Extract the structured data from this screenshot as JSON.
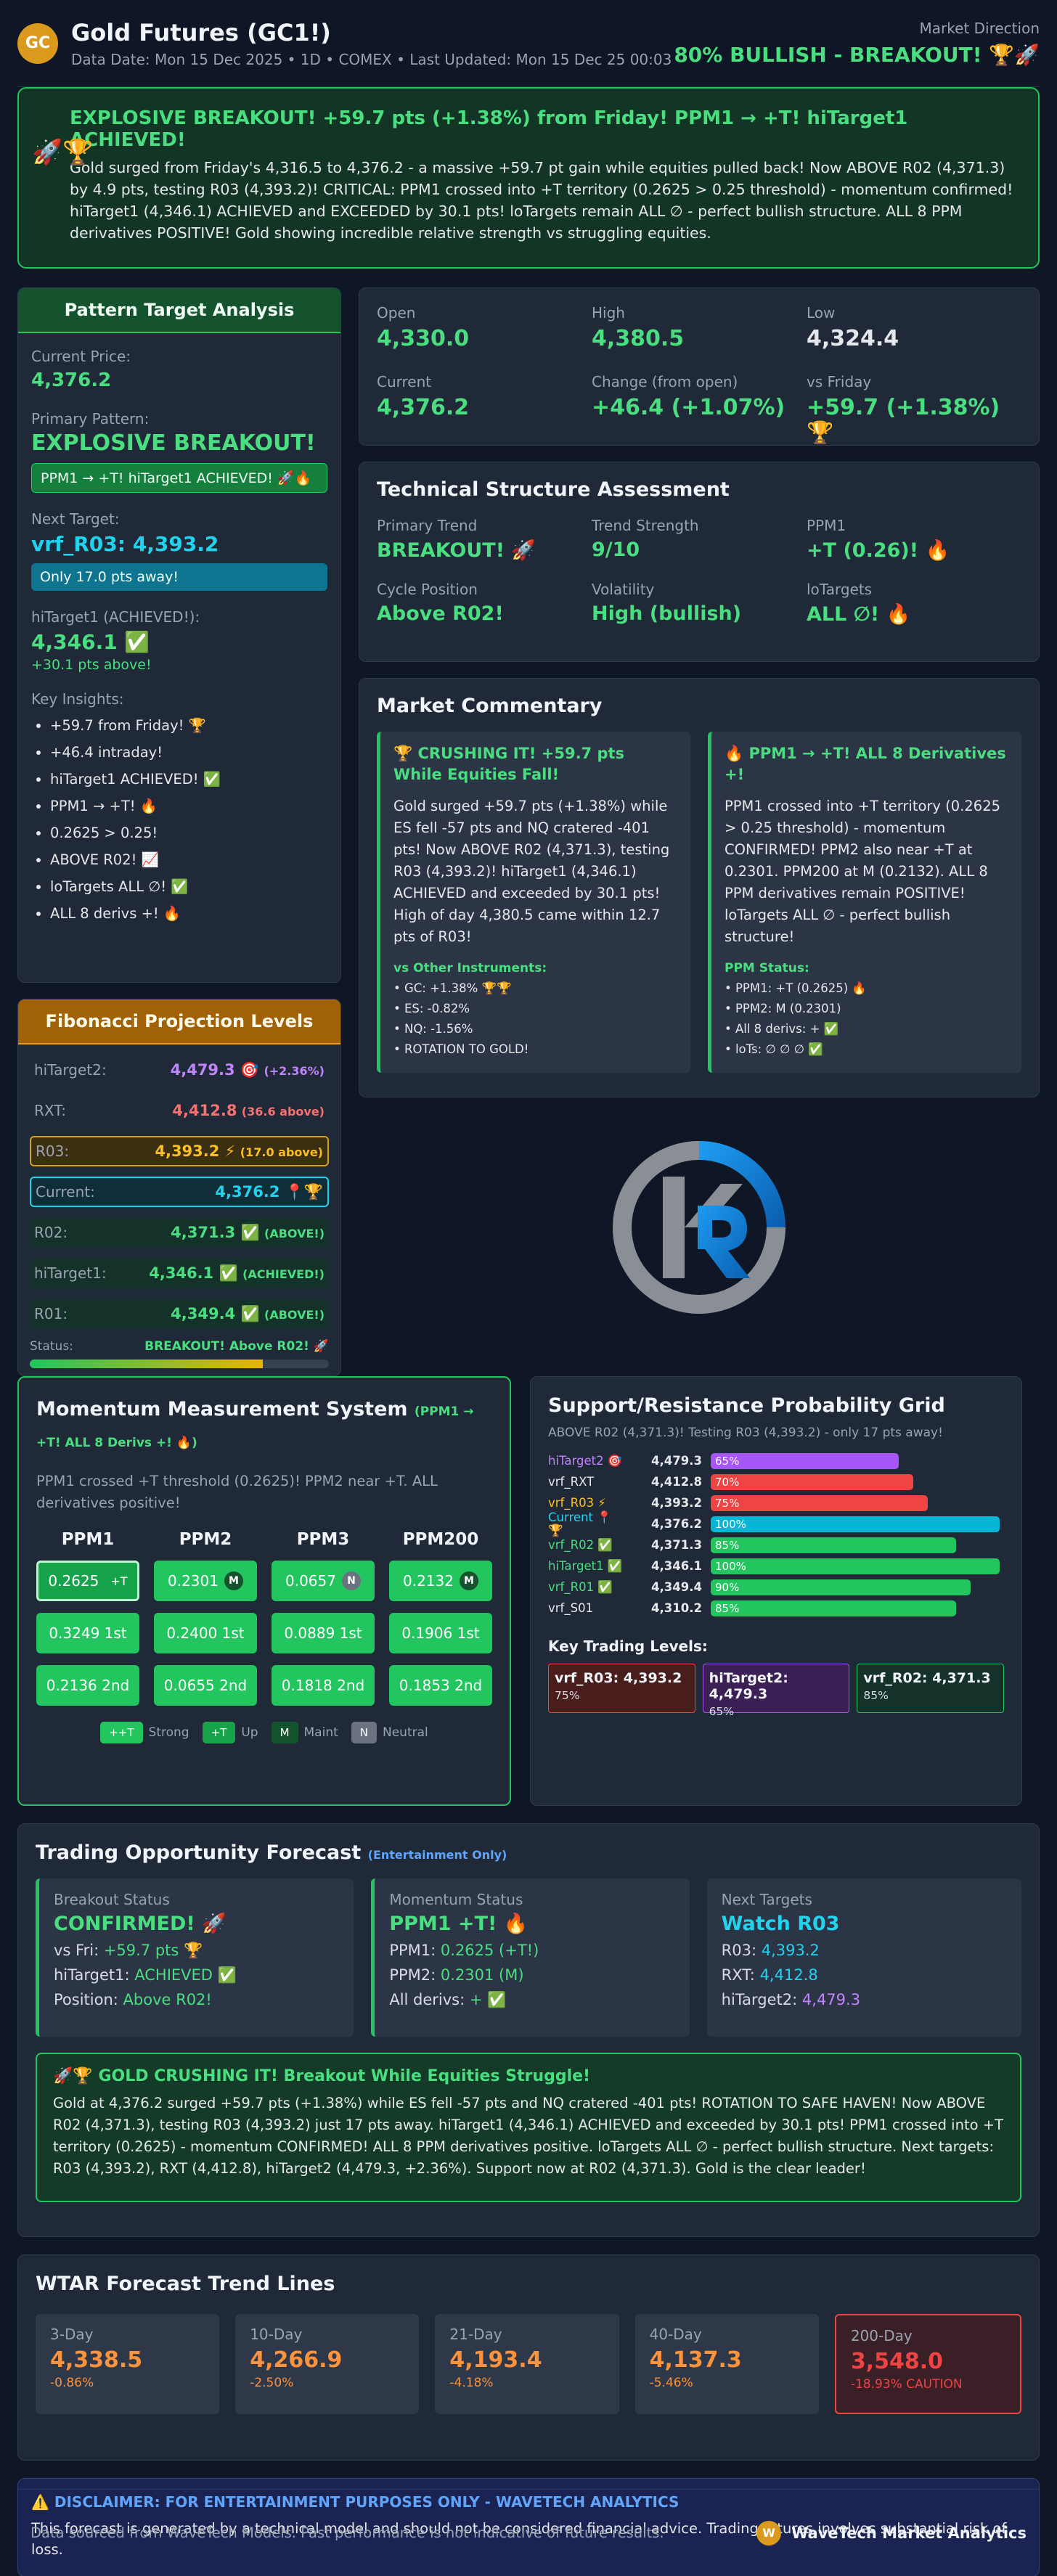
{
  "header": {
    "logo": "GC",
    "title": "Gold Futures (GC1!)",
    "subtitle": "Data Date: Mon 15 Dec 2025 • 1D • COMEX • Last Updated: Mon 15 Dec 25 00:03",
    "direction_label": "Market Direction",
    "direction_value": "80% BULLISH - BREAKOUT! 🏆🚀"
  },
  "alert": {
    "icons": "🚀🏆",
    "title": "EXPLOSIVE BREAKOUT! +59.7 pts (+1.38%) from Friday! PPM1 → +T! hiTarget1 ACHIEVED!",
    "body": "Gold surged from Friday's 4,316.5 to 4,376.2 - a massive +59.7 pt gain while equities pulled back! Now ABOVE R02 (4,371.3) by 4.9 pts, testing R03 (4,393.2)! CRITICAL: PPM1 crossed into +T territory (0.2625 > 0.25 threshold) - momentum confirmed! hiTarget1 (4,346.1) ACHIEVED and EXCEEDED by 30.1 pts! loTargets remain ALL ∅ - perfect bullish structure. ALL 8 PPM derivatives POSITIVE! Gold showing incredible relative strength vs struggling equities."
  },
  "pattern": {
    "heading": "Pattern Target Analysis",
    "current_price_label": "Current Price:",
    "current_price": "4,376.2",
    "primary_pattern_label": "Primary Pattern:",
    "primary_pattern": "EXPLOSIVE BREAKOUT!",
    "primary_pill": "PPM1 → +T! hiTarget1 ACHIEVED! 🚀🔥",
    "next_target_label": "Next Target:",
    "next_target": "vrf_R03: 4,393.2",
    "next_pill": "Only 17.0 pts away!",
    "hitarget_label": "hiTarget1 (ACHIEVED!):",
    "hitarget_value": "4,346.1 ✅",
    "hitarget_note": "+30.1 pts above!",
    "insights_label": "Key Insights:",
    "insights": [
      "+59.7 from Friday! 🏆",
      "+46.4 intraday!",
      "hiTarget1 ACHIEVED! ✅",
      "PPM1 → +T! 🔥",
      "0.2625 > 0.25!",
      "ABOVE R02! 📈",
      "loTargets ALL ∅! ✅",
      "ALL 8 derivs +! 🔥"
    ]
  },
  "fib": {
    "heading": "Fibonacci Projection Levels",
    "rows": [
      {
        "label": "hiTarget2:",
        "value": "4,479.3 🎯",
        "note": "(+2.36%)"
      },
      {
        "label": "RXT:",
        "value": "4,412.8",
        "note": "(36.6 above)"
      },
      {
        "label": "R03:",
        "value": "4,393.2 ⚡",
        "note": "(17.0 above)"
      },
      {
        "label": "Current:",
        "value": "4,376.2 📍🏆",
        "note": ""
      },
      {
        "label": "R02:",
        "value": "4,371.3 ✅",
        "note": "(ABOVE!)"
      },
      {
        "label": "hiTarget1:",
        "value": "4,346.1 ✅",
        "note": "(ACHIEVED!)"
      },
      {
        "label": "R01:",
        "value": "4,349.4 ✅",
        "note": "(ABOVE!)"
      }
    ],
    "status_label": "Status:",
    "status_value": "BREAKOUT! Above R02! 🚀",
    "progress": 0.78
  },
  "stats": [
    {
      "label": "Open",
      "value": "4,330.0"
    },
    {
      "label": "High",
      "value": "4,380.5"
    },
    {
      "label": "Low",
      "value": "4,324.4"
    },
    {
      "label": "Current",
      "value": "4,376.2"
    },
    {
      "label": "Change (from open)",
      "value": "+46.4 (+1.07%)"
    },
    {
      "label": "vs Friday",
      "value": "+59.7 (+1.38%) 🏆"
    }
  ],
  "tech": {
    "heading": "Technical Structure Assessment",
    "items": [
      {
        "label": "Primary Trend",
        "value": "BREAKOUT! 🚀"
      },
      {
        "label": "Trend Strength",
        "value": "9/10"
      },
      {
        "label": "PPM1",
        "value": "+T (0.26)! 🔥"
      },
      {
        "label": "Cycle Position",
        "value": "Above R02!"
      },
      {
        "label": "Volatility",
        "value": "High (bullish)"
      },
      {
        "label": "loTargets",
        "value": "ALL ∅! 🔥"
      }
    ]
  },
  "commentary": {
    "heading": "Market Commentary",
    "left": {
      "title": "🏆 CRUSHING IT! +59.7 pts While Equities Fall!",
      "body": "Gold surged +59.7 pts (+1.38%) while ES fell -57 pts and NQ cratered -401 pts! Now ABOVE R02 (4,371.3), testing R03 (4,393.2)! hiTarget1 (4,346.1) ACHIEVED and exceeded by 30.1 pts! High of day 4,380.5 came within 12.7 pts of R03!",
      "sub": "vs Other Instruments:",
      "list": [
        "• GC: +1.38% 🏆🏆",
        "• ES: -0.82%",
        "• NQ: -1.56%",
        "• ROTATION TO GOLD!"
      ]
    },
    "right": {
      "title": "🔥 PPM1 → +T! ALL 8 Derivatives +!",
      "body": "PPM1 crossed into +T territory (0.2625 > 0.25 threshold) - momentum CONFIRMED! PPM2 also near +T at 0.2301. PPM200 at M (0.2132). ALL 8 PPM derivatives remain POSITIVE! loTargets ALL ∅ - perfect bullish structure!",
      "sub": "PPM Status:",
      "list": [
        "• PPM1: +T (0.2625) 🔥",
        "• PPM2: M (0.2301)",
        "• All 8 derivs: + ✅",
        "• loTs: ∅ ∅ ∅ ✅"
      ]
    }
  },
  "momentum": {
    "title": "Momentum Measurement System",
    "title_tag": "(PPM1 → +T! ALL 8 Derivs +! 🔥)",
    "desc": "PPM1 crossed +T threshold (0.2625)! PPM2 near +T. ALL derivatives positive!",
    "columns": [
      {
        "name": "PPM1",
        "cells": [
          {
            "v": "0.2625",
            "b": "+T"
          },
          {
            "v": "0.3249 1st",
            "b": ""
          },
          {
            "v": "0.2136 2nd",
            "b": ""
          }
        ]
      },
      {
        "name": "PPM2",
        "cells": [
          {
            "v": "0.2301",
            "b": "M"
          },
          {
            "v": "0.2400 1st",
            "b": ""
          },
          {
            "v": "0.0655 2nd",
            "b": ""
          }
        ]
      },
      {
        "name": "PPM3",
        "cells": [
          {
            "v": "0.0657",
            "b": "N"
          },
          {
            "v": "0.0889 1st",
            "b": ""
          },
          {
            "v": "0.1818 2nd",
            "b": ""
          }
        ]
      },
      {
        "name": "PPM200",
        "cells": [
          {
            "v": "0.2132",
            "b": "M"
          },
          {
            "v": "0.1906 1st",
            "b": ""
          },
          {
            "v": "0.1853 2nd",
            "b": ""
          }
        ]
      }
    ],
    "legend": [
      {
        "tag": "++T",
        "label": "Strong",
        "color": "#22c55e"
      },
      {
        "tag": "+T",
        "label": "Up",
        "color": "#16a34a"
      },
      {
        "tag": "M",
        "label": "Maint",
        "color": "#14532d"
      },
      {
        "tag": "N",
        "label": "Neutral",
        "color": "#6b7280"
      }
    ]
  },
  "sr": {
    "title": "Support/Resistance Probability Grid",
    "sub": "ABOVE R02 (4,371.3)! Testing R03 (4,393.2) - only 17 pts away!",
    "rows": [
      {
        "name": "hiTarget2 🎯",
        "value": "4,479.3",
        "pct": 65,
        "label": "65%",
        "color": "#a855f7",
        "name_color": "#c084fc"
      },
      {
        "name": "vrf_RXT",
        "value": "4,412.8",
        "pct": 70,
        "label": "70%",
        "color": "#ef4444",
        "name_color": "#e5e7eb"
      },
      {
        "name": "vrf_R03 ⚡",
        "value": "4,393.2",
        "pct": 75,
        "label": "75%",
        "color": "#ef4444",
        "name_color": "#fbbf24"
      },
      {
        "name": "Current 📍🏆",
        "value": "4,376.2",
        "pct": 100,
        "label": "100%",
        "color": "#06b6d4",
        "name_color": "#22d3ee"
      },
      {
        "name": "vrf_R02 ✅",
        "value": "4,371.3",
        "pct": 85,
        "label": "85%",
        "color": "#22c55e",
        "name_color": "#4ade80"
      },
      {
        "name": "hiTarget1 ✅",
        "value": "4,346.1",
        "pct": 100,
        "label": "100%",
        "color": "#22c55e",
        "name_color": "#4ade80"
      },
      {
        "name": "vrf_R01 ✅",
        "value": "4,349.4",
        "pct": 90,
        "label": "90%",
        "color": "#22c55e",
        "name_color": "#4ade80"
      },
      {
        "name": "vrf_S01",
        "value": "4,310.2",
        "pct": 85,
        "label": "85%",
        "color": "#22c55e",
        "name_color": "#e5e7eb"
      }
    ],
    "key_title": "Key Trading Levels:",
    "keys": [
      {
        "title": "vrf_R03: 4,393.2",
        "pct": "75%",
        "bg": "#4a1d1d",
        "border": "#ef4444"
      },
      {
        "title": "hiTarget2: 4,479.3",
        "pct": "65%",
        "bg": "#3b1f55",
        "border": "#a855f7"
      },
      {
        "title": "vrf_R02: 4,371.3",
        "pct": "85%",
        "bg": "#14322a",
        "border": "#22c55e"
      }
    ]
  },
  "trade": {
    "title": "Trading Opportunity Forecast",
    "title_tag": "(Entertainment Only)",
    "breakout": {
      "label": "Breakout Status",
      "value": "CONFIRMED! 🚀",
      "l1": "vs Fri:",
      "v1": "+59.7 pts 🏆",
      "l2": "hiTarget1:",
      "v2": "ACHIEVED ✅",
      "l3": "Position:",
      "v3": "Above R02!"
    },
    "momentum": {
      "label": "Momentum Status",
      "value": "PPM1 +T! 🔥",
      "l1": "PPM1:",
      "v1": "0.2625 (+T!)",
      "l2": "PPM2:",
      "v2": "0.2301 (M)",
      "l3": "All derivs:",
      "v3": "+ ✅"
    },
    "targets": {
      "label": "Next Targets",
      "value": "Watch R03",
      "l1": "R03:",
      "v1": "4,393.2",
      "l2": "RXT:",
      "v2": "4,412.8",
      "l3": "hiTarget2:",
      "v3": "4,479.3"
    },
    "alert_title": "🚀🏆 GOLD CRUSHING IT! Breakout While Equities Struggle!",
    "alert_body": "Gold at 4,376.2 surged +59.7 pts (+1.38%) while ES fell -57 pts and NQ cratered -401 pts! ROTATION TO SAFE HAVEN! Now ABOVE R02 (4,371.3), testing R03 (4,393.2) just 17 pts away. hiTarget1 (4,346.1) ACHIEVED and exceeded by 30.1 pts! PPM1 crossed into +T territory (0.2625) - momentum CONFIRMED! ALL 8 PPM derivatives positive. loTargets ALL ∅ - perfect bullish structure. Next targets: R03 (4,393.2), RXT (4,412.8), hiTarget2 (4,479.3, +2.36%). Support now at R02 (4,371.3). Gold is the clear leader!"
  },
  "wtar": {
    "title": "WTAR Forecast Trend Lines",
    "items": [
      {
        "label": "3-Day",
        "value": "4,338.5",
        "pct": "-0.86%"
      },
      {
        "label": "10-Day",
        "value": "4,266.9",
        "pct": "-2.50%"
      },
      {
        "label": "21-Day",
        "value": "4,193.4",
        "pct": "-4.18%"
      },
      {
        "label": "40-Day",
        "value": "4,137.3",
        "pct": "-5.46%"
      },
      {
        "label": "200-Day",
        "value": "3,548.0",
        "pct": "-18.93% CAUTION"
      }
    ]
  },
  "disclaimer": {
    "title": "⚠️ DISCLAIMER: FOR ENTERTAINMENT PURPOSES ONLY - WAVETECH ANALYTICS",
    "body": "This forecast is generated by a technical model and should not be considered financial advice. Trading futures involves substantial risk of loss."
  },
  "footer": {
    "left": "Data sourced from WaveTech Models. Past performance is not indicative of future results.",
    "logo": "W",
    "brand": "WaveTech Market Analytics"
  }
}
